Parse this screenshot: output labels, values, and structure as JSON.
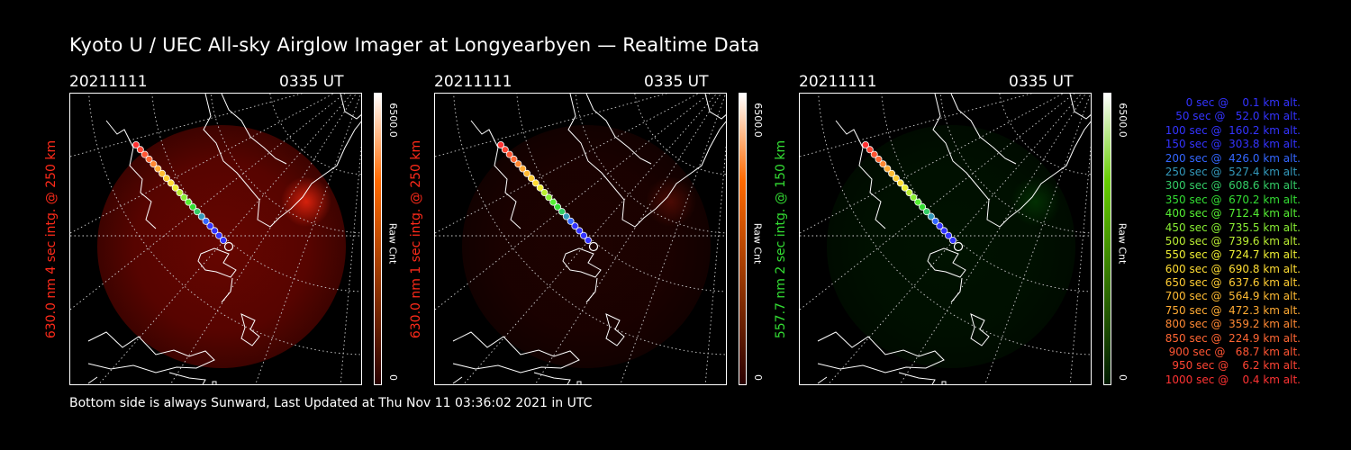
{
  "title": "Kyoto U / UEC All-sky Airglow Imager at Longyearbyen — Realtime Data",
  "footer": "Bottom side is always Sunward, Last Updated at Thu Nov 11 03:36:02 2021 in UTC",
  "panels": [
    {
      "date": "20211111",
      "time": "0335 UT",
      "channel_label": "630.0 nm 4 sec intg. @ 250 km",
      "label_color": "#ff2a1a",
      "glow": "red",
      "glow_level": 0.85,
      "colorbar_max": "6500.0",
      "colorbar_min": "0",
      "colorbar_unit": "Raw Cnt",
      "colorbar_top": "#ff6a00",
      "colorbar_bottom": "#2a0000"
    },
    {
      "date": "20211111",
      "time": "0335 UT",
      "channel_label": "630.0 nm 1 sec intg. @ 250 km",
      "label_color": "#ff2a1a",
      "glow": "red",
      "glow_level": 0.25,
      "colorbar_max": "6500.0",
      "colorbar_min": "0",
      "colorbar_unit": "Raw Cnt",
      "colorbar_top": "#ff6a00",
      "colorbar_bottom": "#2a0000"
    },
    {
      "date": "20211111",
      "time": "0335 UT",
      "channel_label": "557.7 nm 2 sec intg. @ 150 km",
      "label_color": "#33dd33",
      "glow": "green",
      "glow_level": 0.3,
      "colorbar_max": "6500.0",
      "colorbar_min": "0",
      "colorbar_unit": "Raw Cnt",
      "colorbar_top": "#66cc00",
      "colorbar_bottom": "#001a00"
    }
  ],
  "trajectory": [
    {
      "label": "   0 sec @    0.1 km alt.",
      "color": "#3333ff"
    },
    {
      "label": "  50 sec @   52.0 km alt.",
      "color": "#3333ff"
    },
    {
      "label": " 100 sec @  160.2 km alt.",
      "color": "#3333ff"
    },
    {
      "label": " 150 sec @  303.8 km alt.",
      "color": "#3333ff"
    },
    {
      "label": " 200 sec @  426.0 km alt.",
      "color": "#3366ff"
    },
    {
      "label": " 250 sec @  527.4 km alt.",
      "color": "#3399bb"
    },
    {
      "label": " 300 sec @  608.6 km alt.",
      "color": "#33cc66"
    },
    {
      "label": " 350 sec @  670.2 km alt.",
      "color": "#33dd33"
    },
    {
      "label": " 400 sec @  712.4 km alt.",
      "color": "#55ee33"
    },
    {
      "label": " 450 sec @  735.5 km alt.",
      "color": "#88ee33"
    },
    {
      "label": " 500 sec @  739.6 km alt.",
      "color": "#bbee33"
    },
    {
      "label": " 550 sec @  724.7 km alt.",
      "color": "#eeee33"
    },
    {
      "label": " 600 sec @  690.8 km alt.",
      "color": "#ffdd33"
    },
    {
      "label": " 650 sec @  637.6 km alt.",
      "color": "#ffcc33"
    },
    {
      "label": " 700 sec @  564.9 km alt.",
      "color": "#ffbb33"
    },
    {
      "label": " 750 sec @  472.3 km alt.",
      "color": "#ffaa33"
    },
    {
      "label": " 800 sec @  359.2 km alt.",
      "color": "#ff8833"
    },
    {
      "label": " 850 sec @  224.9 km alt.",
      "color": "#ff6633"
    },
    {
      "label": " 900 sec @   68.7 km alt.",
      "color": "#ff5533"
    },
    {
      "label": " 950 sec @    6.2 km alt.",
      "color": "#ff4433"
    },
    {
      "label": "1000 sec @    0.4 km alt.",
      "color": "#ff3333"
    }
  ]
}
